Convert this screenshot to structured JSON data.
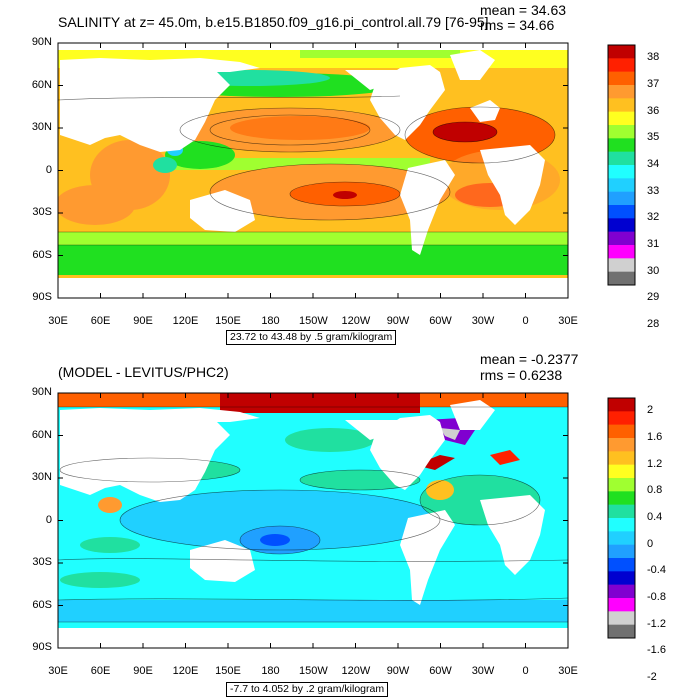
{
  "panels": [
    {
      "title": "SALINITY at z=  45.0m, b.e15.B1850.f09_g16.pi_control.all.79 [76-95]",
      "mean_label": "mean = 34.63",
      "rms_label": "rms = 34.66",
      "range_label": "23.72 to 43.48 by .5 gram/kilogram",
      "colorbar_levels": [
        "38",
        "37",
        "36",
        "35",
        "34",
        "33",
        "32",
        "31",
        "30",
        "29",
        "28"
      ],
      "colorbar_colors": [
        "#c00000",
        "#ff2000",
        "#ff6000",
        "#ff9a30",
        "#ffc020",
        "#ffff20",
        "#a0ff30",
        "#20e020",
        "#20e0a0",
        "#20ffff",
        "#20d0ff",
        "#20a0ff",
        "#0050ff",
        "#0000d0",
        "#8000d0",
        "#ff00ff",
        "#d0d0d0",
        "#707070"
      ],
      "lat_labels": [
        "90N",
        "60N",
        "30N",
        "0",
        "30S",
        "60S",
        "90S"
      ],
      "lon_labels": [
        "30E",
        "60E",
        "90E",
        "120E",
        "150E",
        "180",
        "150W",
        "120W",
        "90W",
        "60W",
        "30W",
        "0",
        "30E"
      ]
    },
    {
      "title": "(MODEL - LEVITUS/PHC2)",
      "mean_label": "mean = -0.2377",
      "rms_label": "rms = 0.6238",
      "range_label": "-7.7 to 4.052 by .2 gram/kilogram",
      "colorbar_levels": [
        "2",
        "1.6",
        "1.2",
        "0.8",
        "0.4",
        "0",
        "-0.4",
        "-0.8",
        "-1.2",
        "-1.6",
        "-2"
      ],
      "colorbar_colors": [
        "#c00000",
        "#ff2000",
        "#ff6000",
        "#ff9a30",
        "#ffc020",
        "#ffff20",
        "#a0ff30",
        "#20e020",
        "#20e0a0",
        "#20ffff",
        "#20d0ff",
        "#20a0ff",
        "#0050ff",
        "#0000d0",
        "#8000d0",
        "#ff00ff",
        "#d0d0d0",
        "#707070"
      ],
      "lat_labels": [
        "90N",
        "60N",
        "30N",
        "0",
        "30S",
        "60S",
        "90S"
      ],
      "lon_labels": [
        "30E",
        "60E",
        "90E",
        "120E",
        "150E",
        "180",
        "150W",
        "120W",
        "90W",
        "60W",
        "30W",
        "0",
        "30E"
      ]
    }
  ]
}
